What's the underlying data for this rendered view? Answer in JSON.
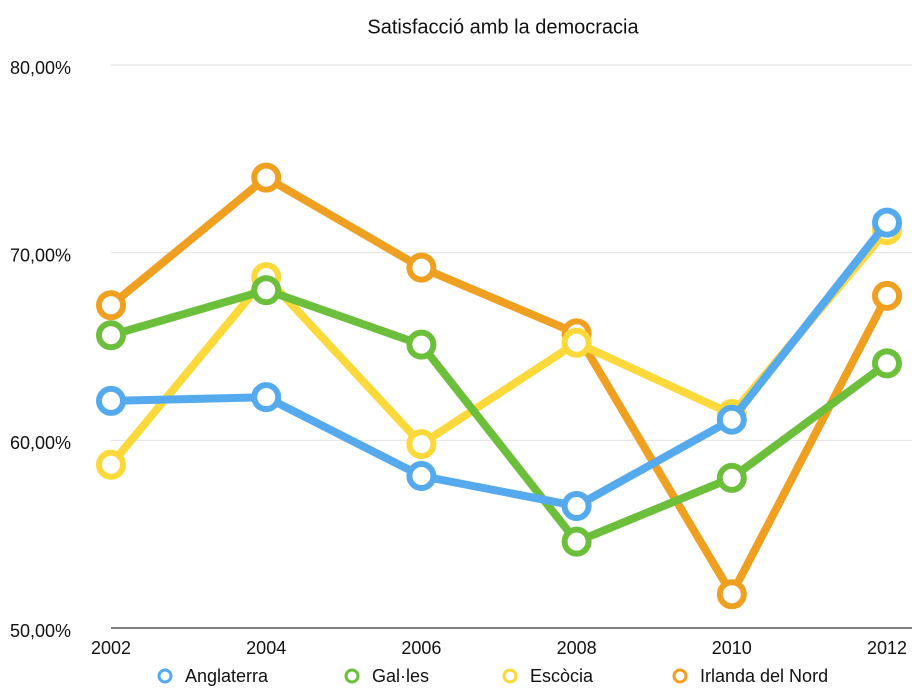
{
  "chart_data": {
    "type": "line",
    "title": "Satisfacció amb la democracia",
    "categories": [
      "2002",
      "2004",
      "2006",
      "2008",
      "2010",
      "2012"
    ],
    "series": [
      {
        "name": "Anglaterra",
        "color": "#55aaee",
        "values": [
          62.1,
          62.3,
          58.1,
          56.5,
          61.1,
          71.6
        ]
      },
      {
        "name": "Gal·les",
        "color": "#6cbf3a",
        "values": [
          65.6,
          68.0,
          65.1,
          54.6,
          58.0,
          64.1
        ]
      },
      {
        "name": "Escòcia",
        "color": "#fcd93a",
        "values": [
          58.7,
          68.7,
          59.8,
          65.2,
          61.4,
          71.2
        ]
      },
      {
        "name": "Irlanda del Nord",
        "color": "#f0a020",
        "values": [
          67.2,
          74.0,
          69.2,
          65.7,
          51.8,
          67.7
        ]
      }
    ],
    "ylim": [
      50,
      80
    ],
    "yticks": [
      {
        "value": 50,
        "label": "50,00%"
      },
      {
        "value": 60,
        "label": "60,00%"
      },
      {
        "value": 70,
        "label": "70,00%"
      },
      {
        "value": 80,
        "label": "80,00%"
      }
    ],
    "grid": true,
    "legend": "bottom"
  }
}
